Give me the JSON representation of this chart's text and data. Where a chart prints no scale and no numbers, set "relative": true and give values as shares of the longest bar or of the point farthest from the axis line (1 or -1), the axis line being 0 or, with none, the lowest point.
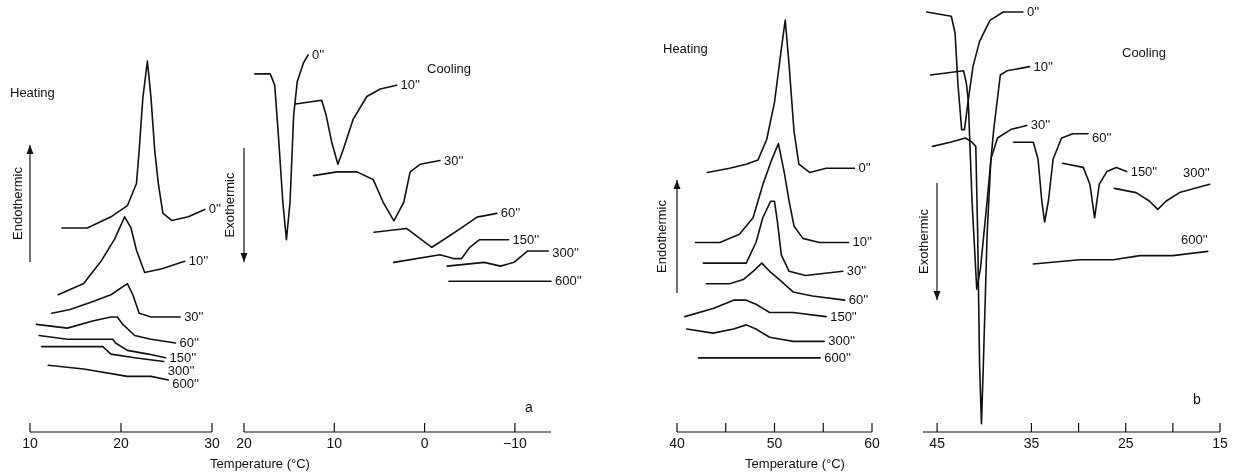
{
  "chart_data": [
    {
      "type": "line",
      "title": "Heating",
      "ylabel": "Endothermic",
      "xlabel": "Temperature (°C)",
      "relative": true,
      "xlim": [
        10,
        30
      ],
      "xticks": [
        10,
        20,
        30
      ],
      "grid": false,
      "legend": false,
      "marker": "none",
      "line_style": "solid",
      "series": [
        {
          "name": "0''",
          "x": [
            13.5,
            16.3,
            18.9,
            20.7,
            21.7,
            22.0,
            22.4,
            22.9,
            23.3,
            23.7,
            24.1,
            24.6,
            25.6,
            27.4,
            29.2
          ],
          "values": [
            0.55,
            0.55,
            0.58,
            0.61,
            0.67,
            0.76,
            0.9,
            1.0,
            0.9,
            0.76,
            0.67,
            0.59,
            0.57,
            0.58,
            0.6
          ]
        },
        {
          "name": "10''",
          "x": [
            13.1,
            15.9,
            17.8,
            19.3,
            20.4,
            21.1,
            21.7,
            22.6,
            24.5,
            27.0
          ],
          "values": [
            0.37,
            0.4,
            0.46,
            0.52,
            0.58,
            0.55,
            0.49,
            0.43,
            0.44,
            0.46
          ]
        },
        {
          "name": "30''",
          "x": [
            12.4,
            14.4,
            16.7,
            18.9,
            20.7,
            21.3,
            22.0,
            23.3,
            26.5
          ],
          "values": [
            0.32,
            0.33,
            0.35,
            0.37,
            0.4,
            0.37,
            0.32,
            0.31,
            0.31
          ]
        },
        {
          "name": "60''",
          "x": [
            10.7,
            14.1,
            17.0,
            18.9,
            19.6,
            20.2,
            21.5,
            23.3,
            26.0
          ],
          "values": [
            0.29,
            0.28,
            0.3,
            0.31,
            0.31,
            0.29,
            0.26,
            0.25,
            0.24
          ]
        },
        {
          "name": "150''",
          "x": [
            11.0,
            14.1,
            17.0,
            19.1,
            19.4,
            20.7,
            23.0,
            24.9
          ],
          "values": [
            0.26,
            0.25,
            0.25,
            0.25,
            0.24,
            0.22,
            0.21,
            0.2
          ]
        },
        {
          "name": "300''",
          "x": [
            11.3,
            14.1,
            17.0,
            18.0,
            18.9,
            21.5,
            24.7
          ],
          "values": [
            0.23,
            0.23,
            0.23,
            0.23,
            0.21,
            0.2,
            0.19
          ]
        },
        {
          "name": "600''",
          "x": [
            12.0,
            15.9,
            20.7,
            23.3,
            25.2
          ],
          "values": [
            0.18,
            0.17,
            0.15,
            0.15,
            0.14
          ]
        }
      ]
    },
    {
      "type": "line",
      "title": "Cooling",
      "ylabel": "Exothermic",
      "annotations": [
        "a"
      ],
      "relative": true,
      "xlim": [
        20,
        -14
      ],
      "xticks": [
        20,
        10,
        0,
        -10
      ],
      "grid": false,
      "legend": false,
      "marker": "none",
      "line_style": "solid",
      "series": [
        {
          "name": "0''",
          "x": [
            18.8,
            17.1,
            16.6,
            16.2,
            15.7,
            15.3,
            14.9,
            14.5,
            14.1,
            13.4,
            12.9
          ],
          "values": [
            0.95,
            0.95,
            0.92,
            0.79,
            0.61,
            0.51,
            0.61,
            0.84,
            0.93,
            0.98,
            1.0
          ]
        },
        {
          "name": "10''",
          "x": [
            14.3,
            11.4,
            10.9,
            10.3,
            9.6,
            9.0,
            7.9,
            6.4,
            4.9,
            3.1
          ],
          "values": [
            0.87,
            0.88,
            0.84,
            0.77,
            0.71,
            0.75,
            0.83,
            0.89,
            0.91,
            0.92
          ]
        },
        {
          "name": "30''",
          "x": [
            12.3,
            9.7,
            7.5,
            5.7,
            4.6,
            3.4,
            2.3,
            1.6,
            0.5,
            -1.7
          ],
          "values": [
            0.68,
            0.69,
            0.69,
            0.67,
            0.61,
            0.56,
            0.61,
            0.69,
            0.71,
            0.72
          ]
        },
        {
          "name": "60''",
          "x": [
            5.6,
            2.0,
            0.9,
            -0.8,
            -2.1,
            -4.0,
            -5.8,
            -8.0
          ],
          "values": [
            0.53,
            0.54,
            0.52,
            0.49,
            0.51,
            0.54,
            0.57,
            0.58
          ]
        },
        {
          "name": "150''",
          "x": [
            3.4,
            -1.7,
            -3.2,
            -4.1,
            -5.0,
            -6.1,
            -9.3
          ],
          "values": [
            0.45,
            0.47,
            0.46,
            0.46,
            0.49,
            0.51,
            0.51
          ]
        },
        {
          "name": "300''",
          "x": [
            -2.5,
            -6.6,
            -8.4,
            -9.9,
            -11.4,
            -13.7
          ],
          "values": [
            0.44,
            0.45,
            0.44,
            0.45,
            0.48,
            0.48
          ]
        },
        {
          "name": "600''",
          "x": [
            -2.7,
            -7.7,
            -14.0
          ],
          "values": [
            0.4,
            0.4,
            0.4
          ]
        }
      ]
    },
    {
      "type": "line",
      "title": "Heating",
      "ylabel": "Endothermic",
      "xlabel": "Temperature (°C)",
      "relative": true,
      "xlim": [
        40,
        60
      ],
      "xticks": [
        40,
        {
          "value": 45,
          "label": null
        },
        50,
        {
          "value": 55,
          "label": null
        },
        60
      ],
      "grid": false,
      "legend": false,
      "marker": "none",
      "line_style": "solid",
      "series": [
        {
          "name": "0''",
          "x": [
            43.1,
            45.4,
            47.1,
            48.3,
            49.2,
            50.0,
            50.7,
            51.1,
            51.5,
            52.0,
            52.5,
            53.6,
            55.3,
            58.2
          ],
          "values": [
            0.63,
            0.64,
            0.65,
            0.66,
            0.71,
            0.8,
            0.93,
            1.0,
            0.89,
            0.73,
            0.65,
            0.63,
            0.64,
            0.64
          ]
        },
        {
          "name": "10''",
          "x": [
            41.9,
            44.4,
            46.4,
            47.8,
            48.8,
            49.7,
            50.4,
            51.0,
            51.5,
            52.0,
            52.9,
            54.6,
            57.6
          ],
          "values": [
            0.46,
            0.46,
            0.48,
            0.52,
            0.6,
            0.66,
            0.7,
            0.63,
            0.56,
            0.5,
            0.47,
            0.46,
            0.46
          ]
        },
        {
          "name": "30''",
          "x": [
            42.7,
            45.4,
            47.1,
            48.1,
            48.8,
            49.6,
            50.0,
            50.3,
            50.7,
            51.5,
            53.2,
            57.0
          ],
          "values": [
            0.41,
            0.41,
            0.41,
            0.46,
            0.52,
            0.56,
            0.56,
            0.51,
            0.43,
            0.39,
            0.38,
            0.39
          ]
        },
        {
          "name": "60''",
          "x": [
            43.0,
            45.4,
            46.8,
            47.8,
            48.7,
            49.5,
            50.5,
            51.9,
            53.9,
            57.2
          ],
          "values": [
            0.36,
            0.36,
            0.37,
            0.39,
            0.41,
            0.39,
            0.37,
            0.34,
            0.33,
            0.32
          ]
        },
        {
          "name": "150''",
          "x": [
            40.8,
            43.7,
            45.8,
            47.1,
            48.1,
            49.5,
            51.9,
            55.3
          ],
          "values": [
            0.28,
            0.3,
            0.32,
            0.32,
            0.31,
            0.29,
            0.29,
            0.28
          ]
        },
        {
          "name": "300''",
          "x": [
            41.0,
            43.7,
            45.8,
            47.1,
            48.1,
            49.5,
            51.9,
            55.1
          ],
          "values": [
            0.25,
            0.24,
            0.25,
            0.26,
            0.25,
            0.23,
            0.22,
            0.22
          ]
        },
        {
          "name": "600''",
          "x": [
            42.2,
            44.4,
            45.8,
            48.1,
            50.2,
            52.5,
            54.7
          ],
          "values": [
            0.18,
            0.18,
            0.18,
            0.18,
            0.18,
            0.18,
            0.18
          ]
        }
      ]
    },
    {
      "type": "line",
      "title": "Cooling",
      "ylabel": "Exothermic",
      "annotations": [
        "b"
      ],
      "relative": true,
      "xlim": [
        46.5,
        15
      ],
      "xticks": [
        45,
        35,
        {
          "value": 30,
          "label": null
        },
        25,
        {
          "value": 20,
          "label": null
        },
        15
      ],
      "grid": false,
      "legend": false,
      "marker": "none",
      "line_style": "solid",
      "series": [
        {
          "name": "0''",
          "x": [
            46.1,
            43.5,
            43.1,
            42.8,
            42.4,
            42.1,
            41.7,
            41.2,
            40.5,
            39.4,
            38.0,
            35.9
          ],
          "values": [
            1.0,
            0.99,
            0.95,
            0.83,
            0.72,
            0.72,
            0.79,
            0.87,
            0.93,
            0.98,
            1.0,
            1.0
          ]
        },
        {
          "name": "10''",
          "x": [
            45.7,
            42.2,
            41.9,
            41.7,
            41.3,
            40.8,
            40.4,
            39.7,
            39.0,
            38.3,
            37.6,
            35.2
          ],
          "values": [
            0.85,
            0.86,
            0.83,
            0.79,
            0.55,
            0.34,
            0.39,
            0.55,
            0.72,
            0.85,
            0.86,
            0.87
          ]
        },
        {
          "name": "30''",
          "x": [
            45.5,
            43.6,
            42.0,
            41.3,
            40.9,
            40.7,
            40.5,
            40.3,
            40.1,
            39.7,
            39.3,
            38.6,
            37.2,
            35.5
          ],
          "values": [
            0.68,
            0.69,
            0.7,
            0.69,
            0.68,
            0.47,
            0.16,
            0.02,
            0.16,
            0.47,
            0.65,
            0.7,
            0.72,
            0.73
          ]
        },
        {
          "name": "60''",
          "x": [
            36.9,
            34.8,
            34.3,
            33.9,
            33.6,
            33.2,
            32.7,
            31.8,
            30.6,
            29.0
          ],
          "values": [
            0.69,
            0.69,
            0.65,
            0.55,
            0.5,
            0.55,
            0.65,
            0.7,
            0.71,
            0.71
          ]
        },
        {
          "name": "150''",
          "x": [
            31.7,
            29.5,
            28.8,
            28.3,
            27.8,
            27.0,
            26.0,
            24.9
          ],
          "values": [
            0.64,
            0.63,
            0.59,
            0.51,
            0.59,
            0.62,
            0.63,
            0.62
          ]
        },
        {
          "name": "300''",
          "x": [
            26.2,
            23.9,
            22.5,
            21.6,
            20.7,
            19.3,
            16.1
          ],
          "values": [
            0.58,
            0.57,
            0.55,
            0.53,
            0.55,
            0.57,
            0.59
          ]
        },
        {
          "name": "600''",
          "x": [
            34.8,
            29.9,
            26.3,
            23.5,
            22.5,
            20.0,
            16.3
          ],
          "values": [
            0.4,
            0.41,
            0.41,
            0.42,
            0.42,
            0.42,
            0.43
          ]
        }
      ]
    }
  ]
}
